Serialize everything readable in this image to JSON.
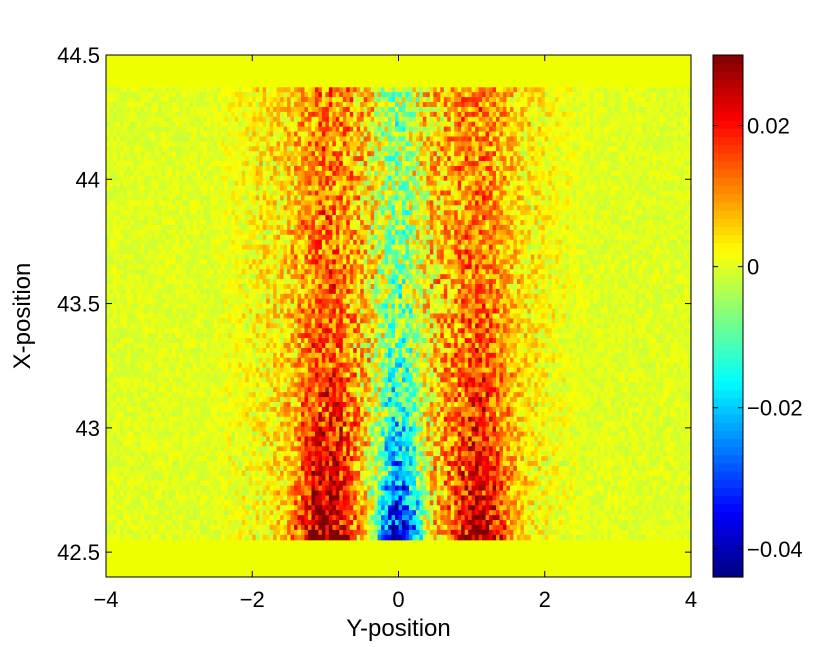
{
  "chart_data": {
    "type": "heatmap",
    "title": "",
    "xlabel": "Y-position",
    "ylabel": "X-position",
    "xlim": [
      -4,
      4
    ],
    "ylim": [
      42.4,
      44.5
    ],
    "xticks": [
      -4,
      -2,
      0,
      2,
      4
    ],
    "xtick_labels": [
      "−4",
      "−2",
      "0",
      "2",
      "4"
    ],
    "yticks": [
      42.5,
      43,
      43.5,
      44,
      44.5
    ],
    "ytick_labels": [
      "42.5",
      "43",
      "43.5",
      "44",
      "44.5"
    ],
    "colorbar": {
      "range": [
        -0.044,
        0.03
      ],
      "ticks": [
        -0.04,
        -0.02,
        0,
        0.02
      ],
      "tick_labels": [
        "−0.04",
        "−0.02",
        "0",
        "0.02"
      ],
      "colormap": "jet"
    },
    "data_extent": {
      "y_position": [
        -4,
        4
      ],
      "x_position": [
        42.55,
        44.37
      ]
    },
    "features": [
      {
        "y_position": -1.0,
        "x_position": 42.68,
        "value": 0.028,
        "description": "red streak band"
      },
      {
        "y_position": 0.0,
        "x_position": 42.62,
        "value": -0.04,
        "description": "blue streak band"
      },
      {
        "y_position": 1.1,
        "x_position": 42.68,
        "value": 0.025,
        "description": "red streak band"
      }
    ],
    "background_value": 0.0,
    "grid": false
  }
}
